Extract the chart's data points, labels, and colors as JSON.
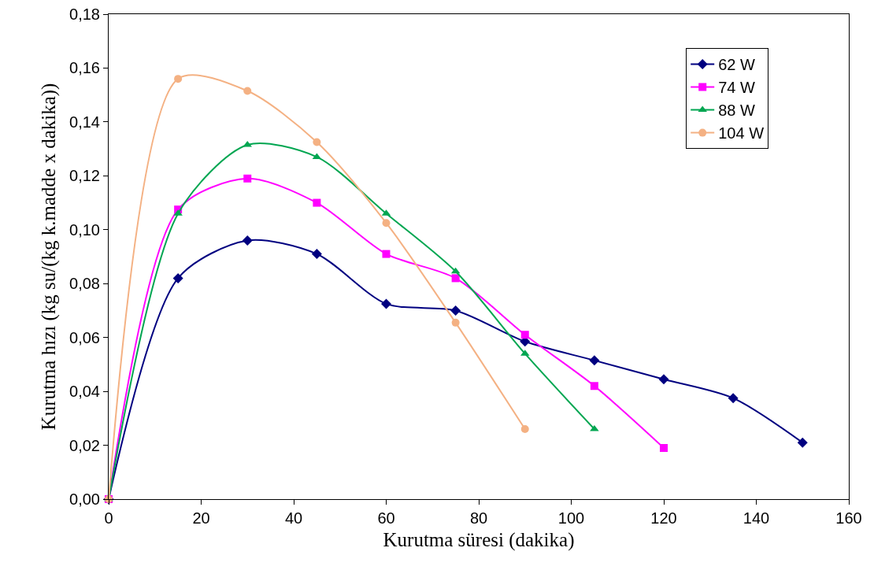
{
  "chart_data": {
    "type": "line",
    "xlabel": "Kurutma süresi (dakika)",
    "ylabel": "Kurutma hızı (kg su/(kg k.madde x dakika))",
    "xlim": [
      0,
      160
    ],
    "xticks": [
      0,
      20,
      40,
      60,
      80,
      100,
      120,
      140,
      160
    ],
    "ylim": [
      0,
      0.18
    ],
    "yticks": [
      {
        "value": 0,
        "label": "0,00"
      },
      {
        "value": 0.02,
        "label": "0,02"
      },
      {
        "value": 0.04,
        "label": "0,04"
      },
      {
        "value": 0.06,
        "label": "0,06"
      },
      {
        "value": 0.08,
        "label": "0,08"
      },
      {
        "value": 0.1,
        "label": "0,10"
      },
      {
        "value": 0.12,
        "label": "0,12"
      },
      {
        "value": 0.14,
        "label": "0,14"
      },
      {
        "value": 0.16,
        "label": "0,16"
      },
      {
        "value": 0.18,
        "label": "0,18"
      }
    ],
    "grid": false,
    "legend": "top right",
    "line_style": "solid",
    "series": [
      {
        "name": "62 W",
        "color": "#000080",
        "marker": "diamond",
        "x": [
          0,
          15,
          30,
          45,
          60,
          75,
          90,
          105,
          120,
          135,
          150
        ],
        "values": [
          0,
          0.082,
          0.096,
          0.091,
          0.0725,
          0.07,
          0.0585,
          0.0515,
          0.0445,
          0.0375,
          0.021
        ]
      },
      {
        "name": "74 W",
        "color": "#ff00ff",
        "marker": "square",
        "x": [
          0,
          15,
          30,
          45,
          60,
          75,
          90,
          105,
          120
        ],
        "values": [
          0,
          0.1075,
          0.119,
          0.11,
          0.091,
          0.082,
          0.061,
          0.042,
          0.019
        ]
      },
      {
        "name": "88 W",
        "color": "#00a651",
        "marker": "triangle",
        "x": [
          0,
          15,
          30,
          45,
          60,
          75,
          90,
          105
        ],
        "values": [
          0,
          0.106,
          0.1315,
          0.127,
          0.106,
          0.0845,
          0.054,
          0.026
        ]
      },
      {
        "name": "104 W",
        "color": "#f4b183",
        "marker": "circle",
        "x": [
          0,
          15,
          30,
          45,
          60,
          75,
          90
        ],
        "values": [
          0,
          0.156,
          0.1515,
          0.1325,
          0.1025,
          0.0655,
          0.026
        ]
      }
    ]
  }
}
